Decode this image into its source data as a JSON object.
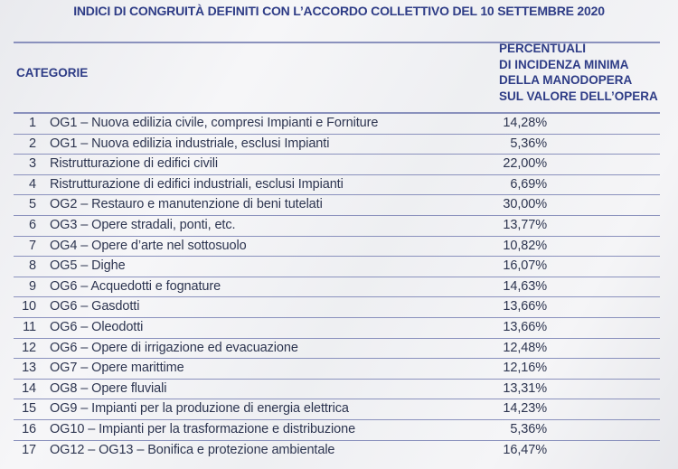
{
  "title": "INDICI DI CONGRUITÀ DEFINITI CON L’ACCORDO COLLETTIVO DEL 10 SETTEMBRE 2020",
  "headers": {
    "category": "CATEGORIE",
    "percentage": "PERCENTUALI\nDI INCIDENZA MINIMA\nDELLA MANODOPERA\nSUL VALORE DELL’OPERA"
  },
  "rows": [
    {
      "n": "1",
      "category": "OG1 – Nuova edilizia civile, compresi Impianti e Forniture",
      "pct": "14,28%"
    },
    {
      "n": "2",
      "category": "OG1 – Nuova edilizia industriale, esclusi Impianti",
      "pct": "5,36%"
    },
    {
      "n": "3",
      "category": "Ristrutturazione di edifici civili",
      "pct": "22,00%"
    },
    {
      "n": "4",
      "category": "Ristrutturazione di edifici industriali, esclusi Impianti",
      "pct": "6,69%"
    },
    {
      "n": "5",
      "category": "OG2 – Restauro e manutenzione di beni tutelati",
      "pct": "30,00%"
    },
    {
      "n": "6",
      "category": "OG3 – Opere stradali, ponti, etc.",
      "pct": "13,77%"
    },
    {
      "n": "7",
      "category": "OG4 – Opere d’arte nel sottosuolo",
      "pct": "10,82%"
    },
    {
      "n": "8",
      "category": "OG5 – Dighe",
      "pct": "16,07%"
    },
    {
      "n": "9",
      "category": "OG6 – Acquedotti e fognature",
      "pct": "14,63%"
    },
    {
      "n": "10",
      "category": "OG6 – Gasdotti",
      "pct": "13,66%"
    },
    {
      "n": "11",
      "category": "OG6 – Oleodotti",
      "pct": "13,66%"
    },
    {
      "n": "12",
      "category": "OG6 – Opere di irrigazione ed evacuazione",
      "pct": "12,48%"
    },
    {
      "n": "13",
      "category": "OG7 – Opere marittime",
      "pct": "12,16%"
    },
    {
      "n": "14",
      "category": "OG8 – Opere fluviali",
      "pct": "13,31%"
    },
    {
      "n": "15",
      "category": "OG9 – Impianti per la produzione di energia elettrica",
      "pct": "14,23%"
    },
    {
      "n": "16",
      "category": "OG10 – Impianti per la trasformazione e distribuzione",
      "pct": "5,36%"
    },
    {
      "n": "17",
      "category": "OG12 – OG13 – Bonifica e protezione ambientale",
      "pct": "16,47%"
    }
  ]
}
